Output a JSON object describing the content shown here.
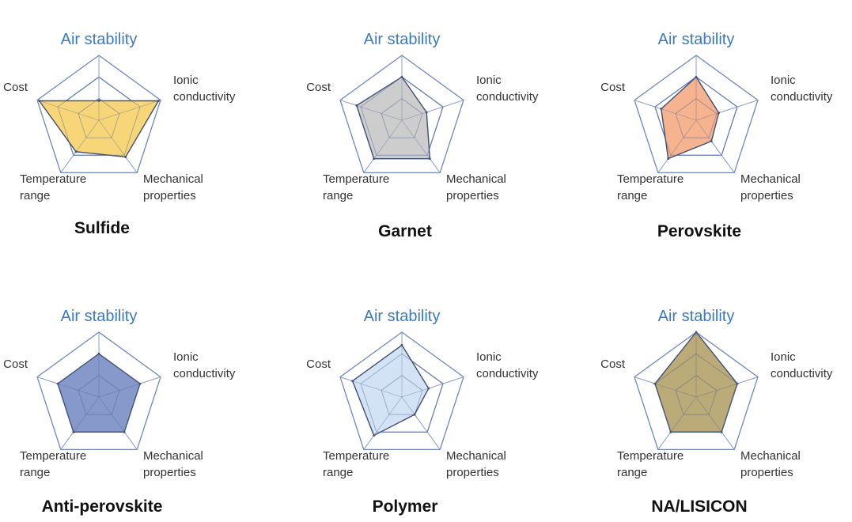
{
  "chart_data": [
    {
      "type": "radar",
      "title": "Sulfide",
      "axes": [
        "Air stability",
        "Ionic conductivity",
        "Mechanical properties",
        "Temperature range",
        "Cost"
      ],
      "axis_labels": {
        "air": "Air stability",
        "ionic": [
          "Ionic",
          "conductivity"
        ],
        "mech": [
          "Mechanical",
          "properties"
        ],
        "temp": [
          "Temperature",
          "range"
        ],
        "cost": "Cost"
      },
      "levels": 3,
      "range": [
        0,
        3
      ],
      "values": [
        0.9,
        2.9,
        2.1,
        1.8,
        2.9
      ],
      "fill": "#f6d36e"
    },
    {
      "type": "radar",
      "title": "Garnet",
      "axes": [
        "Air stability",
        "Ionic conductivity",
        "Mechanical properties",
        "Temperature range",
        "Cost"
      ],
      "axis_labels": {
        "air": "Air stability",
        "ionic": [
          "Ionic",
          "conductivity"
        ],
        "mech": [
          "Mechanical",
          "properties"
        ],
        "temp": [
          "Temperature",
          "range"
        ],
        "cost": "Cost"
      },
      "levels": 3,
      "range": [
        0,
        3
      ],
      "values": [
        2.0,
        1.2,
        2.2,
        2.2,
        2.2
      ],
      "fill": "#c9c9c9"
    },
    {
      "type": "radar",
      "title": "Perovskite",
      "axes": [
        "Air stability",
        "Ionic conductivity",
        "Mechanical properties",
        "Temperature range",
        "Cost"
      ],
      "axis_labels": {
        "air": "Air stability",
        "ionic": [
          "Ionic",
          "conductivity"
        ],
        "mech": [
          "Mechanical",
          "properties"
        ],
        "temp": [
          "Temperature",
          "range"
        ],
        "cost": "Cost"
      },
      "levels": 3,
      "range": [
        0,
        3
      ],
      "values": [
        2.0,
        1.1,
        1.2,
        2.2,
        1.7
      ],
      "fill": "#f4ad86"
    },
    {
      "type": "radar",
      "title": "Anti-perovskite",
      "axes": [
        "Air stability",
        "Ionic conductivity",
        "Mechanical properties",
        "Temperature range",
        "Cost"
      ],
      "axis_labels": {
        "air": "Air stability",
        "ionic": [
          "Ionic",
          "conductivity"
        ],
        "mech": [
          "Mechanical",
          "properties"
        ],
        "temp": [
          "Temperature",
          "range"
        ],
        "cost": "Cost"
      },
      "levels": 3,
      "range": [
        0,
        3
      ],
      "values": [
        2.0,
        2.0,
        2.0,
        2.0,
        2.0
      ],
      "fill": "#7c90c6"
    },
    {
      "type": "radar",
      "title": "Polymer",
      "axes": [
        "Air stability",
        "Ionic conductivity",
        "Mechanical properties",
        "Temperature range",
        "Cost"
      ],
      "axis_labels": {
        "air": "Air stability",
        "ionic": [
          "Ionic",
          "conductivity"
        ],
        "mech": [
          "Mechanical",
          "properties"
        ],
        "temp": [
          "Temperature",
          "range"
        ],
        "cost": "Cost"
      },
      "levels": 3,
      "range": [
        0,
        3
      ],
      "values": [
        2.4,
        1.3,
        1.0,
        2.2,
        2.4
      ],
      "fill": "#cfe1f4"
    },
    {
      "type": "radar",
      "title": "NA/LISICON",
      "axes": [
        "Air stability",
        "Ionic conductivity",
        "Mechanical properties",
        "Temperature range",
        "Cost"
      ],
      "axis_labels": {
        "air": "Air stability",
        "ionic": [
          "Ionic",
          "conductivity"
        ],
        "mech": [
          "Mechanical",
          "properties"
        ],
        "temp": [
          "Temperature",
          "range"
        ],
        "cost": "Cost"
      },
      "levels": 3,
      "range": [
        0,
        3
      ],
      "values": [
        3.0,
        2.0,
        2.0,
        2.0,
        2.0
      ],
      "fill": "#b5a46c"
    }
  ]
}
